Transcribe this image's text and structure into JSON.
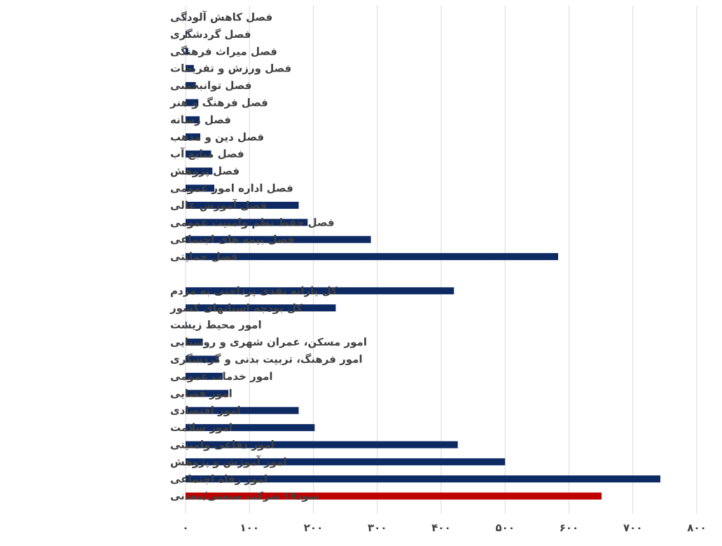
{
  "chart_data": {
    "type": "bar",
    "orientation": "horizontal",
    "xlim": [
      0,
      800
    ],
    "x_ticks": [
      "۰",
      "۱۰۰",
      "۲۰۰",
      "۳۰۰",
      "۴۰۰",
      "۵۰۰",
      "۶۰۰",
      "۷۰۰",
      "۸۰۰"
    ],
    "grid": true,
    "legend": "none",
    "colors": {
      "bar": "#0d2a63",
      "highlight": "#c00000",
      "grid": "#d9d9d9",
      "text": "#404040"
    },
    "categories": [
      "فصل کاهش آلودگی",
      "فصل گردشگری",
      "فصل میراث فرهنگی",
      "فصل ورزش و تفریحات",
      "فصل توانبخشی",
      "فصل فرهنگ و هنر",
      "فصل رسانه",
      "فصل دین و مذهب",
      "فصل منابع آب",
      "فصل پژوهش",
      "فصل اداره امور عمومی",
      "فصل آموزش عالی",
      "فصل حفظ نظم وامنیت عمومی",
      "فصل بیمه های اجتماعی",
      "فصل حمایتی",
      "",
      "کل یارانه نقدی پرداختی به مردم",
      "کل بودجه استانهای کشور",
      "امور محیط زیست",
      "امور مسکن، عمران شهری و روستایی",
      "امور فرهنگ، تربیت بدنی و گردشگری",
      "امور خدمات عمومی",
      "امور قضایی",
      "امور اقتصادی",
      "امور سلامت",
      "امور دفاعی وامنیتی",
      "امور آموزش و پژوهش",
      "امور رفاه اجتماعی",
      "سود۱۷ شرکت صنعتی/معدنی"
    ],
    "values": [
      0,
      2,
      4,
      13,
      16,
      20,
      22,
      23,
      40,
      42,
      45,
      177,
      191,
      290,
      583,
      null,
      420,
      235,
      1,
      27,
      52,
      58,
      67,
      177,
      202,
      426,
      500,
      743,
      651
    ],
    "highlight_index": 28
  }
}
